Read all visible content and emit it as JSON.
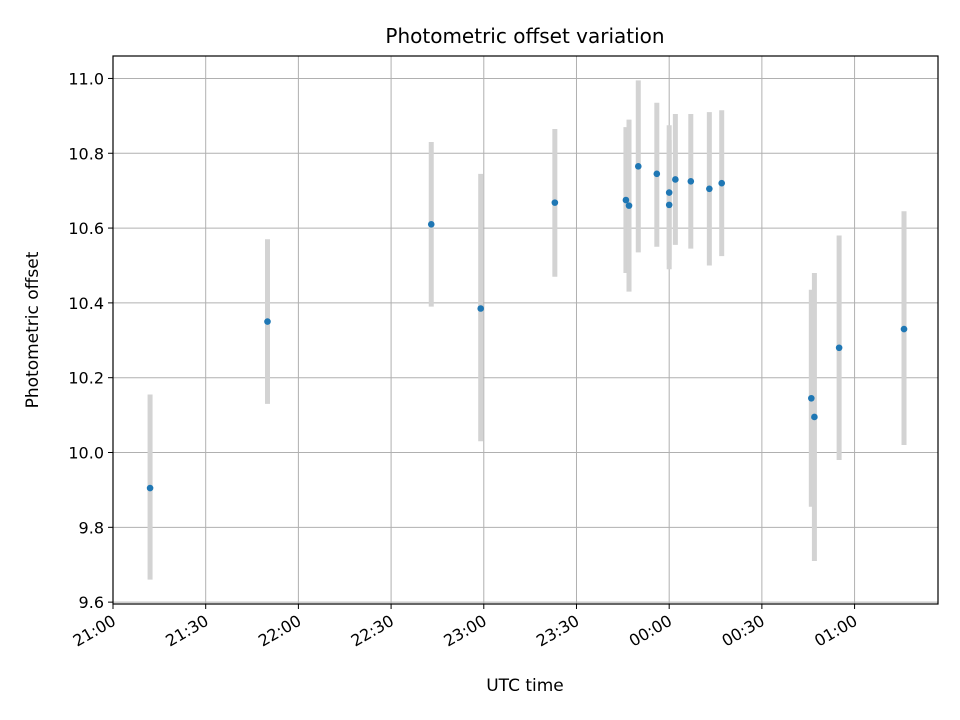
{
  "chart_data": {
    "type": "scatter",
    "title": "Photometric offset variation",
    "xlabel": "UTC time",
    "ylabel": "Photometric offset",
    "x_ticks": [
      "21:00",
      "21:30",
      "22:00",
      "22:30",
      "23:00",
      "23:30",
      "00:00",
      "00:30",
      "01:00"
    ],
    "y_ticks": [
      "9.6",
      "9.8",
      "10.0",
      "10.2",
      "10.4",
      "10.6",
      "10.8",
      "11.0"
    ],
    "xlim": [
      "21:00",
      "01:27"
    ],
    "ylim": [
      9.595,
      11.06
    ],
    "grid": true,
    "point_color": "#1f77b4",
    "errorbar_color": "#d3d3d3",
    "points": [
      {
        "time": "21:12",
        "y": 9.905,
        "low": 9.66,
        "high": 10.155
      },
      {
        "time": "21:50",
        "y": 10.35,
        "low": 10.13,
        "high": 10.57
      },
      {
        "time": "22:43",
        "y": 10.61,
        "low": 10.39,
        "high": 10.83
      },
      {
        "time": "22:59",
        "y": 10.385,
        "low": 10.03,
        "high": 10.745
      },
      {
        "time": "23:23",
        "y": 10.668,
        "low": 10.47,
        "high": 10.865
      },
      {
        "time": "23:46",
        "y": 10.675,
        "low": 10.48,
        "high": 10.87
      },
      {
        "time": "23:47",
        "y": 10.66,
        "low": 10.43,
        "high": 10.89
      },
      {
        "time": "23:50",
        "y": 10.765,
        "low": 10.535,
        "high": 10.995
      },
      {
        "time": "23:56",
        "y": 10.745,
        "low": 10.55,
        "high": 10.935
      },
      {
        "time": "00:00",
        "y": 10.662,
        "low": 10.49,
        "high": 10.835
      },
      {
        "time": "00:00",
        "y": 10.695,
        "low": 10.515,
        "high": 10.875
      },
      {
        "time": "00:02",
        "y": 10.73,
        "low": 10.555,
        "high": 10.905
      },
      {
        "time": "00:07",
        "y": 10.725,
        "low": 10.545,
        "high": 10.905
      },
      {
        "time": "00:13",
        "y": 10.705,
        "low": 10.5,
        "high": 10.91
      },
      {
        "time": "00:17",
        "y": 10.72,
        "low": 10.525,
        "high": 10.915
      },
      {
        "time": "00:46",
        "y": 10.145,
        "low": 9.855,
        "high": 10.435
      },
      {
        "time": "00:47",
        "y": 10.095,
        "low": 9.71,
        "high": 10.48
      },
      {
        "time": "00:55",
        "y": 10.28,
        "low": 9.98,
        "high": 10.58
      },
      {
        "time": "01:16",
        "y": 10.33,
        "low": 10.02,
        "high": 10.645
      }
    ]
  }
}
